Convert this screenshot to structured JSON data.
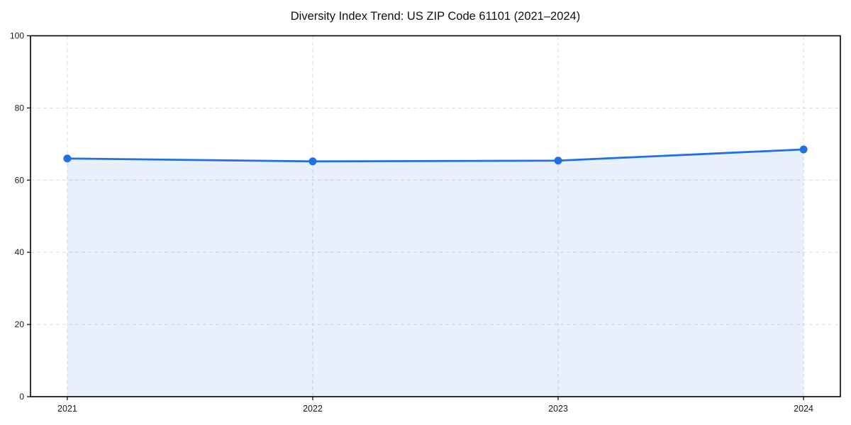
{
  "title": "Diversity Index Trend: US ZIP Code 61101 (2021–2024)",
  "chart_data": {
    "type": "area",
    "title": "Diversity Index Trend: US ZIP Code 61101 (2021–2024)",
    "xlabel": "",
    "ylabel": "",
    "x": [
      2021,
      2022,
      2023,
      2024
    ],
    "categories": [
      "2021",
      "2022",
      "2023",
      "2024"
    ],
    "series": [
      {
        "name": "Diversity Index",
        "values": [
          66.0,
          65.2,
          65.4,
          68.5
        ]
      }
    ],
    "xlim": [
      2020.85,
      2024.15
    ],
    "ylim": [
      0,
      100
    ],
    "yticks": [
      0,
      20,
      40,
      60,
      80,
      100
    ],
    "xticks": [
      2021,
      2022,
      2023,
      2024
    ],
    "grid": true,
    "grid_style": "dashed",
    "legend_position": "none",
    "colors": {
      "line": "#2070e8",
      "marker": "#2070e8",
      "area_fill": "rgba(32, 112, 232, 0.10)",
      "grid": "#dadada",
      "spine": "#000000",
      "tick_text": "#1a1a1a",
      "background": "#ffffff"
    }
  }
}
